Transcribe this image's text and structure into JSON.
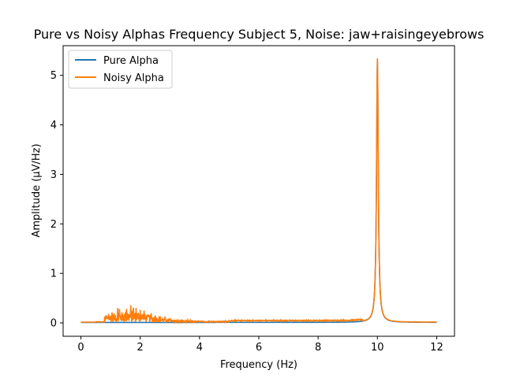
{
  "chart_data": {
    "type": "line",
    "title": "Pure vs Noisy Alphas Frequency Subject 5, Noise: jaw+raisingeyebrows",
    "xlabel": "Frequency (Hz)",
    "ylabel": "Amplitude (μV/Hz)",
    "xlim": [
      -0.6,
      12.6
    ],
    "ylim": [
      -0.27,
      5.6
    ],
    "xticks": [
      0,
      2,
      4,
      6,
      8,
      10,
      12
    ],
    "yticks": [
      0,
      1,
      2,
      3,
      4,
      5
    ],
    "grid": false,
    "legend": {
      "placement": "upper-left",
      "entries": [
        "Pure Alpha",
        "Noisy Alpha"
      ]
    },
    "colors": {
      "Pure Alpha": "#1f77b4",
      "Noisy Alpha": "#ff7f0e"
    },
    "series": [
      {
        "name": "Pure Alpha",
        "peak_frequency": 10.0,
        "peak_amplitude": 5.3,
        "baseline_amplitude": 0.01
      },
      {
        "name": "Noisy Alpha",
        "peak_frequency": 10.0,
        "peak_amplitude": 5.33,
        "noise_band": [
          0.8,
          5.0
        ],
        "noise_max_amplitude": 0.22
      }
    ]
  }
}
